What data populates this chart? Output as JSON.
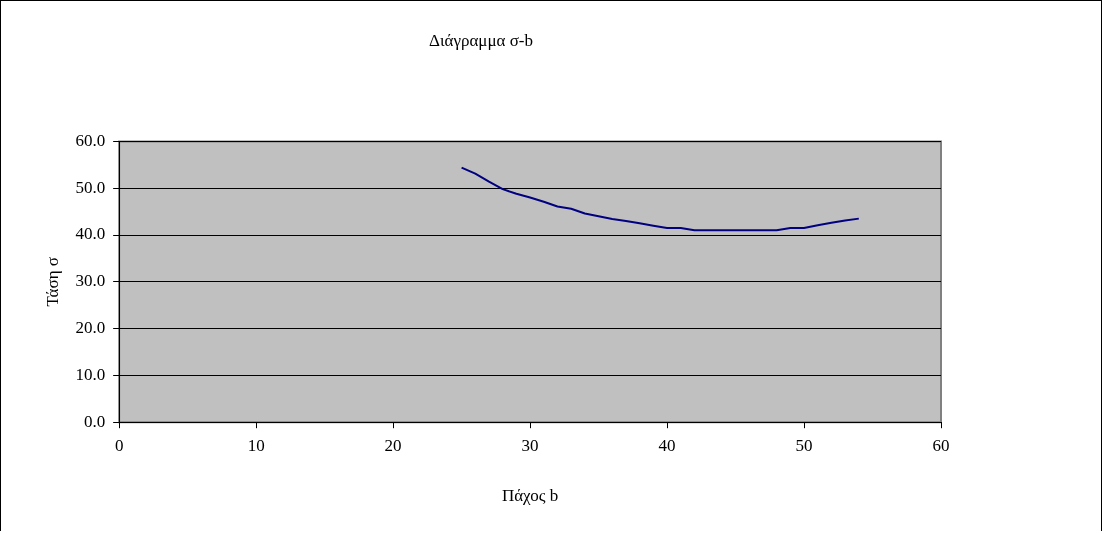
{
  "chart_data": {
    "type": "line",
    "title": "Διάγραμμα σ-b",
    "xlabel": "Πάχος b",
    "ylabel": "Τάση σ",
    "x": [
      25,
      26,
      27,
      28,
      29,
      30,
      31,
      32,
      33,
      34,
      35,
      36,
      37,
      38,
      39,
      40,
      41,
      42,
      43,
      44,
      45,
      46,
      47,
      48,
      49,
      50,
      51,
      52,
      53,
      54
    ],
    "series": [
      {
        "color": "#000080",
        "values": [
          54.4,
          53.1,
          51.4,
          49.8,
          48.8,
          48.0,
          47.1,
          46.1,
          45.6,
          44.6,
          44.0,
          43.4,
          43.0,
          42.5,
          42.0,
          41.5,
          41.5,
          41.0,
          41.0,
          41.0,
          41.0,
          41.0,
          41.0,
          41.0,
          41.5,
          41.5,
          42.1,
          42.6,
          43.1,
          43.5
        ]
      }
    ],
    "xlim": [
      0,
      60
    ],
    "xticks": [
      0,
      10,
      20,
      30,
      40,
      50,
      60
    ],
    "ylim": [
      0,
      60
    ],
    "yticks": [
      {
        "value": 0,
        "label": "0.0"
      },
      {
        "value": 10,
        "label": "10.0"
      },
      {
        "value": 20,
        "label": "20.0"
      },
      {
        "value": 30,
        "label": "30.0"
      },
      {
        "value": 40,
        "label": "40.0"
      },
      {
        "value": 50,
        "label": "50.0"
      },
      {
        "value": 60,
        "label": "60.0"
      }
    ],
    "grid": "y",
    "legend": false,
    "marker": "none",
    "line_style": "solid"
  }
}
